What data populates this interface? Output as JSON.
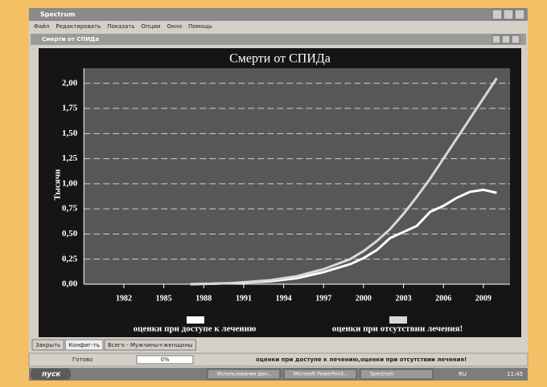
{
  "window": {
    "title": "Spectrum",
    "menu": [
      "Файл",
      "Редактировать",
      "Показать",
      "Опции",
      "Окно",
      "Помощь"
    ]
  },
  "document": {
    "title": "Смерти от СПИДа"
  },
  "chart_data": {
    "type": "line",
    "title": "Смерти от СПИДа",
    "y_label": "Тысячи",
    "x": [
      1987,
      1990,
      1993,
      1995,
      1997,
      1999,
      2000,
      2001,
      2002,
      2003,
      2004,
      2005,
      2006,
      2007,
      2008,
      2009,
      2010
    ],
    "series": [
      {
        "name": "оценки при доступе к лечению",
        "color": "#ffffff",
        "values": [
          0,
          0.01,
          0.03,
          0.06,
          0.12,
          0.2,
          0.26,
          0.34,
          0.46,
          0.52,
          0.58,
          0.72,
          0.78,
          0.86,
          0.92,
          0.94,
          0.91
        ]
      },
      {
        "name": "оценки при отсутствии лечения!",
        "color": "#d8d8d8",
        "values": [
          0,
          0.01,
          0.04,
          0.08,
          0.15,
          0.25,
          0.33,
          0.43,
          0.55,
          0.7,
          0.87,
          1.05,
          1.25,
          1.45,
          1.65,
          1.85,
          2.05
        ]
      }
    ],
    "xlim": [
      1979,
      2011
    ],
    "xticks": [
      1982,
      1985,
      1988,
      1991,
      1994,
      1997,
      2000,
      2003,
      2006,
      2009
    ],
    "ylim": [
      0,
      2.15
    ],
    "yticks": [
      {
        "value": 0,
        "label": "0,00"
      },
      {
        "value": 0.25,
        "label": "0,25"
      },
      {
        "value": 0.5,
        "label": "0,50"
      },
      {
        "value": 0.75,
        "label": "0,75"
      },
      {
        "value": 1,
        "label": "1,00"
      },
      {
        "value": 1.25,
        "label": "1,25"
      },
      {
        "value": 1.5,
        "label": "1,50"
      },
      {
        "value": 1.75,
        "label": "1,75"
      },
      {
        "value": 2,
        "label": "2,00"
      }
    ],
    "grid": true
  },
  "tabs": [
    "Закрыть",
    "Конфиг-ть",
    "Всего - Мужчины+женщины"
  ],
  "status": {
    "state": "Готово",
    "progress": "0%",
    "message": "оценки при доступе к лечению,оценки при отсутствии лечения!"
  },
  "taskbar": {
    "start": "пуск",
    "items": [
      "Использование дан...",
      "Microsoft PowerPoint...",
      "Spectrum"
    ],
    "lang": "RU",
    "clock": "11:45"
  }
}
